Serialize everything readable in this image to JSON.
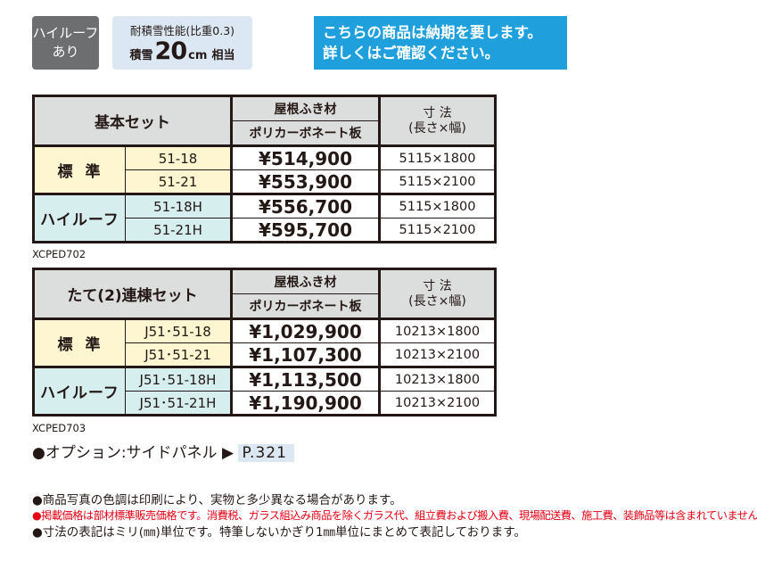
{
  "badges": {
    "high_roof": [
      "ハイルーフ",
      "あり"
    ],
    "snow_load": {
      "line1": "耐積雪性能(比重0.3)",
      "prefix": "積雪",
      "value": "20",
      "unit": "cm",
      "suffix": "相当"
    },
    "notice": [
      "こちらの商品は納期を要します。",
      "詳しくはご確認ください。"
    ]
  },
  "table1": {
    "set_name": "基本セット",
    "roof_header": "屋根ふき材",
    "roof_sub": "ポリカーボネート板",
    "dim_header": [
      "寸 法",
      "(長さ×幅)"
    ],
    "groups": [
      {
        "name": "標準",
        "rows": [
          {
            "model": "51-18",
            "price": "¥514,900",
            "dim": "5115×1800"
          },
          {
            "model": "51-21",
            "price": "¥553,900",
            "dim": "5115×2100"
          }
        ]
      },
      {
        "name": "ハイルーフ",
        "rows": [
          {
            "model": "51-18H",
            "price": "¥556,700",
            "dim": "5115×1800"
          },
          {
            "model": "51-21H",
            "price": "¥595,700",
            "dim": "5115×2100"
          }
        ]
      }
    ],
    "code": "XCPED702"
  },
  "table2": {
    "set_name": "たて(2)連棟セット",
    "roof_header": "屋根ふき材",
    "roof_sub": "ポリカーボネート板",
    "dim_header": [
      "寸 法",
      "(長さ×幅)"
    ],
    "groups": [
      {
        "name": "標準",
        "rows": [
          {
            "model": "J51･51-18",
            "price": "¥1,029,900",
            "dim": "10213×1800"
          },
          {
            "model": "J51･51-21",
            "price": "¥1,107,300",
            "dim": "10213×2100"
          }
        ]
      },
      {
        "name": "ハイルーフ",
        "rows": [
          {
            "model": "J51･51-18H",
            "price": "¥1,113,500",
            "dim": "10213×1800"
          },
          {
            "model": "J51･51-21H",
            "price": "¥1,190,900",
            "dim": "10213×2100"
          }
        ]
      }
    ],
    "code": "XCPED703"
  },
  "option": {
    "label": "●オプション:サイドパネル ▶",
    "page": "P.321"
  },
  "notes": [
    "●商品写真の色調は印刷により、実物と多少異なる場合があります。",
    "●掲載価格は部材標準販売価格です。消費税、ガラス組込み商品を除くガラス代、組立費および搬入費、現場配送費、施工費、装飾品等は含まれていません。",
    "●寸法の表記はミリ(㎜)単位です。特筆しないかぎり1㎜単位にまとめて表記しております。"
  ],
  "colors": {
    "badge_gray": "#6d6e70",
    "snow_bg": "#dbe8f4",
    "notice_blue": "#1fa0dc",
    "header_gray": "#dcdddd",
    "standard_yellow": "#fdf6d0",
    "highroof_teal": "#d6eeee",
    "red_text": "#e60012"
  }
}
